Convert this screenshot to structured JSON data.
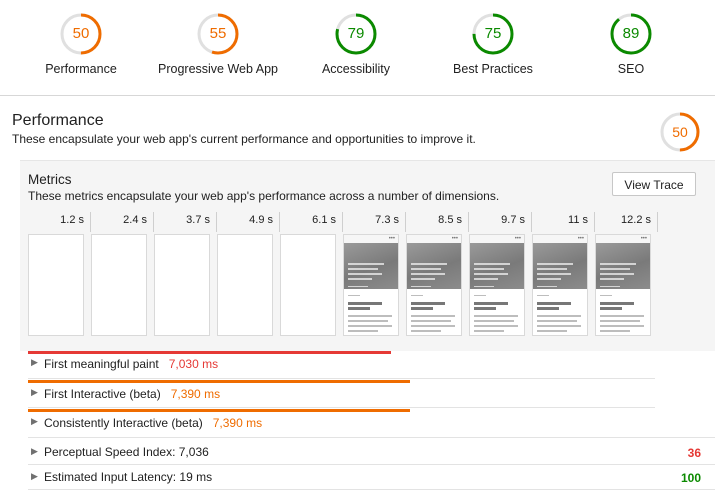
{
  "colors": {
    "orange": "#ef6c00",
    "green": "#0b8a00",
    "red": "#e53935",
    "track": "#e0e0e0"
  },
  "gauges": [
    {
      "name": "performance",
      "score": "50",
      "score_value": 50,
      "label": "Performance",
      "color": "#ef6c00"
    },
    {
      "name": "pwa",
      "score": "55",
      "score_value": 55,
      "label": "Progressive Web App",
      "color": "#ef6c00"
    },
    {
      "name": "accessibility",
      "score": "79",
      "score_value": 79,
      "label": "Accessibility",
      "color": "#0b8a00"
    },
    {
      "name": "best-practices",
      "score": "75",
      "score_value": 75,
      "label": "Best Practices",
      "color": "#0b8a00"
    },
    {
      "name": "seo",
      "score": "89",
      "score_value": 89,
      "label": "SEO",
      "color": "#0b8a00"
    }
  ],
  "performance": {
    "title": "Performance",
    "description": "These encapsulate your web app's current performance and opportunities to improve it.",
    "score": "50",
    "score_value": 50
  },
  "metrics": {
    "title": "Metrics",
    "description": "These metrics encapsulate your web app's performance across a number of dimensions.",
    "view_trace_label": "View Trace",
    "timeline_ticks": [
      "1.2 s",
      "2.4 s",
      "3.7 s",
      "4.9 s",
      "6.1 s",
      "7.3 s",
      "8.5 s",
      "9.7 s",
      "11 s",
      "12.2 s"
    ],
    "frames_rendered_from": 5,
    "items": [
      {
        "label": "First meaningful paint",
        "value": "7,030 ms",
        "value_ms": 7030,
        "color": "red"
      },
      {
        "label": "First Interactive (beta)",
        "value": "7,390 ms",
        "value_ms": 7390,
        "color": "orange"
      },
      {
        "label": "Consistently Interactive (beta)",
        "value": "7,390 ms",
        "value_ms": 7390,
        "color": "orange"
      }
    ],
    "scored_items": [
      {
        "label": "Perceptual Speed Index: 7,036",
        "score": "36",
        "color": "red"
      },
      {
        "label": "Estimated Input Latency: 19 ms",
        "score": "100",
        "color": "green"
      }
    ]
  },
  "timeline_max_ms": 12200
}
